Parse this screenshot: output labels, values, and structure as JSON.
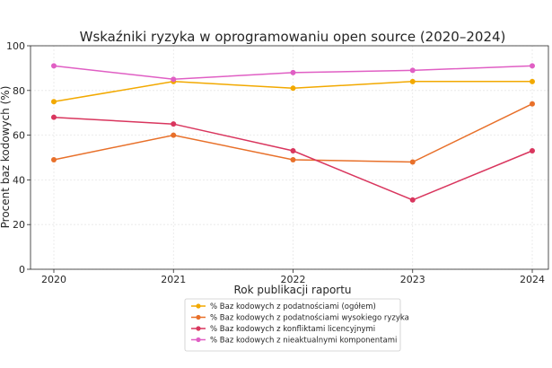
{
  "chart_data": {
    "type": "line",
    "title": "Wskaźniki ryzyka w oprogramowaniu open source (2020–2024)",
    "xlabel": "Rok publikacji raportu",
    "ylabel": "Procent baz kodowych (%)",
    "x": [
      "2020",
      "2021",
      "2022",
      "2023",
      "2024"
    ],
    "ylim": [
      0,
      100
    ],
    "yticks": [
      0,
      20,
      40,
      60,
      80,
      100
    ],
    "grid": true,
    "legend_position": "bottom-center",
    "series": [
      {
        "name": "% Baz kodowych z podatnościami (ogółem)",
        "color": "#f2a900",
        "values": [
          75,
          84,
          81,
          84,
          84
        ]
      },
      {
        "name": "% Baz kodowych z podatnościami wysokiego ryzyka",
        "color": "#e8702a",
        "values": [
          49,
          60,
          49,
          48,
          74
        ]
      },
      {
        "name": "% Baz kodowych z konfliktami licencyjnymi",
        "color": "#d9365e",
        "values": [
          68,
          65,
          53,
          31,
          53
        ]
      },
      {
        "name": "% Baz kodowych z nieaktualnymi komponentami",
        "color": "#e05fc4",
        "values": [
          91,
          85,
          88,
          89,
          91
        ]
      }
    ]
  }
}
